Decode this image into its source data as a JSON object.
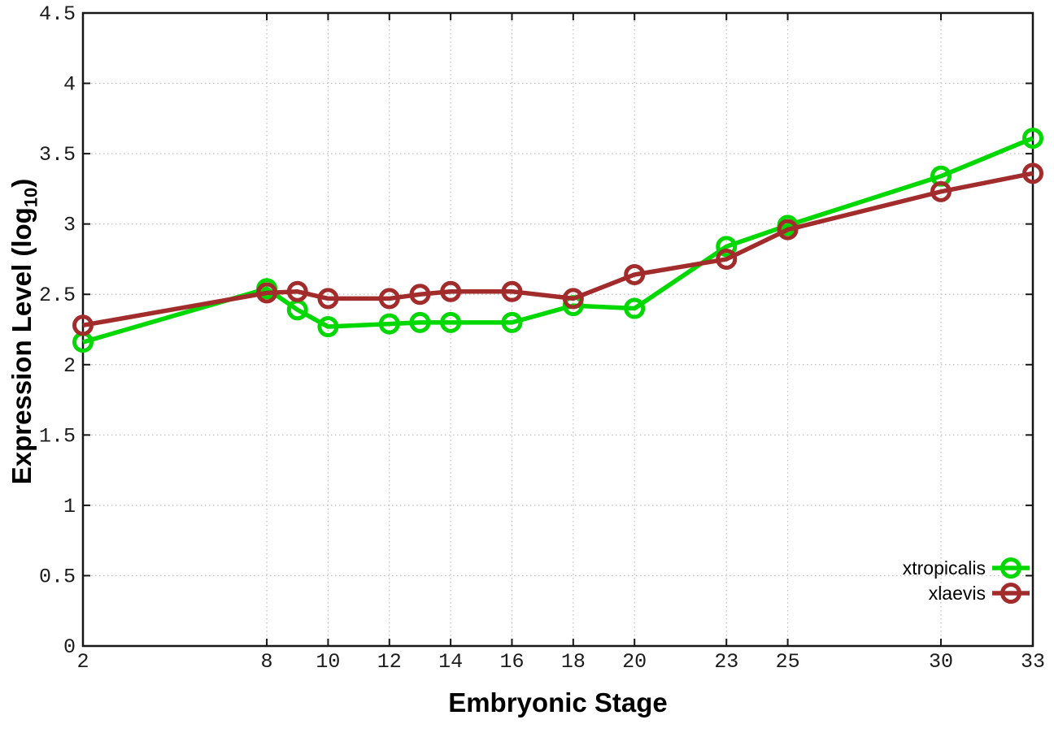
{
  "chart_data": {
    "type": "line",
    "title": "",
    "xlabel": "Embryonic Stage",
    "ylabel": {
      "pre": "Expression Level (log",
      "sub": "10",
      "post": ")"
    },
    "xlim": [
      2,
      33
    ],
    "ylim": [
      0,
      4.5
    ],
    "grid": true,
    "marker": "open-circle",
    "x_ticks": [
      2,
      8,
      10,
      12,
      14,
      16,
      18,
      20,
      23,
      25,
      30,
      33
    ],
    "x_tick_labels": [
      "2",
      "8",
      "10",
      "12",
      "14",
      "16",
      "18",
      "20",
      "23",
      "25",
      "30",
      "33"
    ],
    "y_ticks": [
      0,
      0.5,
      1,
      1.5,
      2,
      2.5,
      3,
      3.5,
      4,
      4.5
    ],
    "y_tick_labels": [
      "0",
      "0.5",
      "1",
      "1.5",
      "2",
      "2.5",
      "3",
      "3.5",
      "4",
      "4.5"
    ],
    "x": [
      2,
      8,
      9,
      10,
      12,
      13,
      14,
      16,
      18,
      20,
      23,
      25,
      30,
      33
    ],
    "series": [
      {
        "name": "xtropicalis",
        "color": "#00d800",
        "values": [
          2.16,
          2.54,
          2.39,
          2.27,
          2.29,
          2.3,
          2.3,
          2.3,
          2.42,
          2.4,
          2.84,
          2.99,
          3.34,
          3.61
        ]
      },
      {
        "name": "xlaevis",
        "color": "#a22c2c",
        "values": [
          2.28,
          2.51,
          2.52,
          2.47,
          2.47,
          2.5,
          2.52,
          2.52,
          2.47,
          2.64,
          2.75,
          2.96,
          3.23,
          3.36
        ]
      }
    ],
    "legend": {
      "position": "inside-bottom-right",
      "entries": [
        "xtropicalis",
        "xlaevis"
      ]
    },
    "colors": {
      "grid": "#bdbdbd",
      "axis": "#161616",
      "tick_text": "#1c1c1c"
    }
  }
}
